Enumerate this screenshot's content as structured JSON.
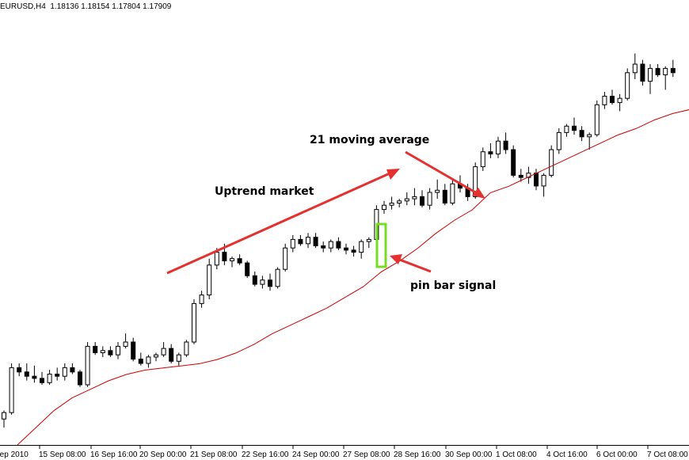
{
  "header": {
    "symbol": "EURUSD,H4",
    "open": "1.18136",
    "high": "1.18154",
    "low": "1.17804",
    "close": "1.17909"
  },
  "annotations": {
    "trend_label": "Uptrend market",
    "ma_label": "21 moving average",
    "pin_label": "pin bar signal"
  },
  "colors": {
    "background": "#ffffff",
    "candle_outline": "#000000",
    "bull_body": "#ffffff",
    "bear_body": "#000000",
    "moving_average": "#cc0000",
    "arrows": "#e53030",
    "pin_highlight": "#77dd22"
  },
  "chart_data": {
    "type": "candlestick",
    "timeframe": "H4",
    "y_scale": "price (no axis printed)",
    "x_ticks": [
      "Sep 2010",
      "15 Sep 08:00",
      "16 Sep 16:00",
      "20 Sep 00:00",
      "21 Sep 08:00",
      "22 Sep 16:00",
      "24 Sep 00:00",
      "27 Sep 08:00",
      "28 Sep 16:00",
      "30 Sep 00:00",
      "1 Oct 08:00",
      "4 Oct 16:00",
      "6 Oct 00:00",
      "7 Oct 08:00"
    ],
    "candles_ohlc_chart_units": [
      [
        4,
        8,
        0,
        7
      ],
      [
        7,
        30,
        6,
        28
      ],
      [
        28,
        30,
        24,
        26
      ],
      [
        26,
        30,
        22,
        24
      ],
      [
        24,
        29,
        21,
        23
      ],
      [
        23,
        26,
        20,
        21
      ],
      [
        21,
        27,
        20,
        25
      ],
      [
        25,
        28,
        22,
        24
      ],
      [
        24,
        30,
        22,
        28
      ],
      [
        28,
        30,
        25,
        26
      ],
      [
        26,
        27,
        19,
        20
      ],
      [
        20,
        40,
        19,
        38
      ],
      [
        38,
        40,
        34,
        35
      ],
      [
        35,
        38,
        33,
        36
      ],
      [
        36,
        38,
        33,
        34
      ],
      [
        34,
        40,
        32,
        38
      ],
      [
        38,
        44,
        37,
        40
      ],
      [
        40,
        42,
        31,
        32
      ],
      [
        32,
        35,
        29,
        30
      ],
      [
        30,
        34,
        28,
        33
      ],
      [
        33,
        35,
        31,
        34
      ],
      [
        34,
        40,
        33,
        37
      ],
      [
        37,
        39,
        30,
        31
      ],
      [
        31,
        35,
        29,
        34
      ],
      [
        34,
        41,
        33,
        40
      ],
      [
        40,
        60,
        39,
        58
      ],
      [
        58,
        64,
        56,
        62
      ],
      [
        62,
        79,
        60,
        76
      ],
      [
        76,
        84,
        74,
        82
      ],
      [
        82,
        86,
        76,
        78
      ],
      [
        78,
        80,
        75,
        79
      ],
      [
        79,
        81,
        76,
        77
      ],
      [
        77,
        78,
        70,
        71
      ],
      [
        71,
        73,
        66,
        67
      ],
      [
        67,
        71,
        65,
        69
      ],
      [
        69,
        72,
        64,
        66
      ],
      [
        66,
        75,
        65,
        74
      ],
      [
        74,
        86,
        73,
        84
      ],
      [
        84,
        90,
        82,
        88
      ],
      [
        88,
        90,
        85,
        86
      ],
      [
        86,
        91,
        84,
        89
      ],
      [
        89,
        91,
        84,
        85
      ],
      [
        85,
        87,
        82,
        84
      ],
      [
        84,
        88,
        82,
        87
      ],
      [
        87,
        89,
        83,
        84
      ],
      [
        84,
        86,
        81,
        83
      ],
      [
        83,
        85,
        80,
        82
      ],
      [
        82,
        88,
        79,
        87
      ],
      [
        87,
        89,
        84,
        88
      ],
      [
        88,
        104,
        87,
        102
      ],
      [
        102,
        106,
        100,
        104
      ],
      [
        104,
        108,
        102,
        105
      ],
      [
        105,
        107,
        103,
        106
      ],
      [
        106,
        110,
        104,
        107
      ],
      [
        107,
        112,
        104,
        108
      ],
      [
        108,
        111,
        103,
        104
      ],
      [
        104,
        112,
        102,
        110
      ],
      [
        110,
        116,
        107,
        111
      ],
      [
        111,
        114,
        104,
        105
      ],
      [
        105,
        116,
        104,
        114
      ],
      [
        114,
        118,
        110,
        112
      ],
      [
        112,
        114,
        106,
        108
      ],
      [
        108,
        124,
        107,
        122
      ],
      [
        122,
        131,
        120,
        129
      ],
      [
        129,
        133,
        126,
        128
      ],
      [
        128,
        136,
        126,
        134
      ],
      [
        134,
        138,
        128,
        130
      ],
      [
        130,
        132,
        117,
        118
      ],
      [
        118,
        121,
        115,
        117
      ],
      [
        117,
        122,
        114,
        119
      ],
      [
        119,
        121,
        111,
        113
      ],
      [
        113,
        119,
        108,
        118
      ],
      [
        118,
        132,
        117,
        130
      ],
      [
        130,
        140,
        128,
        138
      ],
      [
        138,
        142,
        136,
        141
      ],
      [
        141,
        145,
        137,
        139
      ],
      [
        139,
        141,
        134,
        136
      ],
      [
        136,
        138,
        130,
        137
      ],
      [
        137,
        153,
        136,
        151
      ],
      [
        151,
        157,
        149,
        155
      ],
      [
        155,
        158,
        151,
        152
      ],
      [
        152,
        156,
        148,
        154
      ],
      [
        154,
        168,
        153,
        166
      ],
      [
        166,
        175,
        163,
        170
      ],
      [
        170,
        172,
        160,
        162
      ],
      [
        162,
        170,
        156,
        168
      ],
      [
        168,
        170,
        164,
        165
      ],
      [
        165,
        169,
        158,
        168
      ],
      [
        168,
        172,
        164,
        166
      ]
    ],
    "moving_average_chart_units": [
      0,
      8,
      16,
      22,
      26,
      30,
      33,
      35,
      36,
      37,
      38,
      40,
      43,
      47,
      52,
      56,
      60,
      64,
      69,
      74,
      81,
      86,
      92,
      99,
      105,
      110,
      118,
      121,
      125,
      129,
      133,
      137,
      141,
      145,
      148,
      152,
      155,
      157
    ],
    "ma_period": 21
  }
}
